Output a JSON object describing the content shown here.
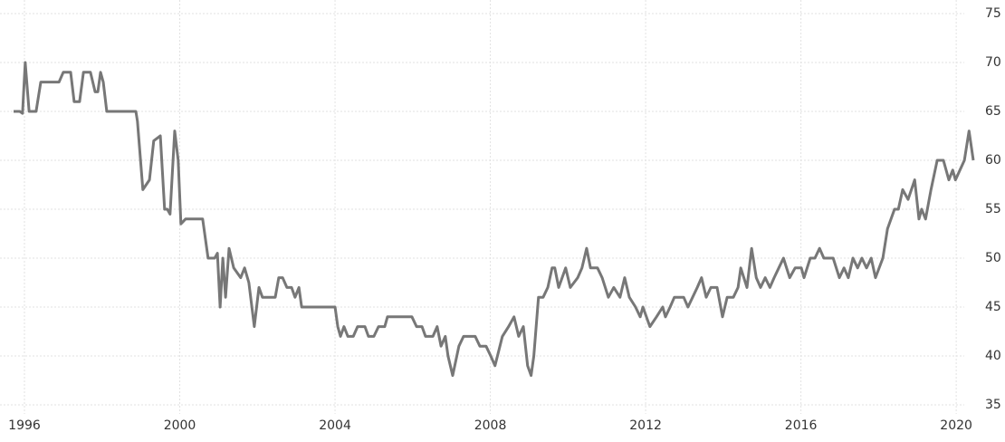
{
  "chart_data": {
    "type": "line",
    "x": [
      1995.72,
      1995.88,
      1995.95,
      1996.02,
      1996.12,
      1996.3,
      1996.42,
      1996.89,
      1997.0,
      1997.19,
      1997.28,
      1997.42,
      1997.52,
      1997.7,
      1997.82,
      1997.89,
      1997.96,
      1998.03,
      1998.12,
      1998.87,
      1998.91,
      1999.05,
      1999.22,
      1999.33,
      1999.5,
      1999.61,
      1999.68,
      1999.75,
      1999.87,
      1999.96,
      2000.03,
      2000.15,
      2000.59,
      2000.73,
      2000.9,
      2000.97,
      2001.04,
      2001.11,
      2001.18,
      2001.27,
      2001.39,
      2001.57,
      2001.67,
      2001.78,
      2001.92,
      2002.04,
      2002.13,
      2002.46,
      2002.55,
      2002.65,
      2002.76,
      2002.88,
      2002.97,
      2003.07,
      2003.14,
      2004.0,
      2004.07,
      2004.14,
      2004.23,
      2004.33,
      2004.47,
      2004.58,
      2004.77,
      2004.86,
      2005.0,
      2005.12,
      2005.28,
      2005.35,
      2005.98,
      2006.1,
      2006.24,
      2006.33,
      2006.52,
      2006.63,
      2006.73,
      2006.84,
      2006.91,
      2007.03,
      2007.19,
      2007.31,
      2007.61,
      2007.73,
      2007.89,
      2008.01,
      2008.12,
      2008.31,
      2008.47,
      2008.61,
      2008.73,
      2008.85,
      2008.96,
      2009.05,
      2009.12,
      2009.24,
      2009.36,
      2009.48,
      2009.59,
      2009.66,
      2009.76,
      2009.94,
      2010.06,
      2010.25,
      2010.36,
      2010.48,
      2010.58,
      2010.76,
      2010.88,
      2011.04,
      2011.18,
      2011.34,
      2011.46,
      2011.58,
      2011.74,
      2011.86,
      2011.93,
      2012.11,
      2012.28,
      2012.44,
      2012.51,
      2012.63,
      2012.74,
      2012.98,
      2013.09,
      2013.21,
      2013.33,
      2013.44,
      2013.56,
      2013.68,
      2013.84,
      2013.98,
      2014.1,
      2014.26,
      2014.38,
      2014.45,
      2014.61,
      2014.73,
      2014.85,
      2014.96,
      2015.08,
      2015.2,
      2015.31,
      2015.43,
      2015.55,
      2015.71,
      2015.85,
      2016.01,
      2016.08,
      2016.24,
      2016.36,
      2016.48,
      2016.59,
      2016.83,
      2016.99,
      2017.11,
      2017.22,
      2017.34,
      2017.46,
      2017.57,
      2017.69,
      2017.81,
      2017.92,
      2018.11,
      2018.23,
      2018.41,
      2018.51,
      2018.62,
      2018.76,
      2018.93,
      2019.04,
      2019.11,
      2019.21,
      2019.35,
      2019.51,
      2019.67,
      2019.81,
      2019.91,
      2019.98,
      2020.21,
      2020.33,
      2020.44
    ],
    "values": [
      65,
      65,
      64.8,
      70,
      65,
      65,
      68,
      68,
      69,
      69,
      66,
      66,
      69,
      69,
      67,
      67,
      69,
      68,
      65,
      65,
      64,
      57,
      58,
      62,
      62.5,
      55,
      55,
      54.5,
      63,
      60,
      53.5,
      54,
      54,
      50,
      50,
      50.5,
      45,
      50,
      46,
      51,
      49,
      48,
      49,
      47.5,
      43,
      47,
      46,
      46,
      48,
      48,
      47,
      47,
      46,
      47,
      45,
      45,
      43,
      42,
      43,
      42,
      42,
      43,
      43,
      42,
      42,
      43,
      43,
      44,
      44,
      43,
      43,
      42,
      42,
      43,
      41,
      42,
      40,
      38,
      41,
      42,
      42,
      41,
      41,
      40,
      39,
      42,
      43,
      44,
      42,
      43,
      39,
      38,
      40,
      46,
      46,
      47,
      49,
      49,
      47,
      49,
      47,
      48,
      49,
      51,
      49,
      49,
      48,
      46,
      47,
      46,
      48,
      46,
      45,
      44,
      45,
      43,
      44,
      45,
      44,
      45,
      46,
      46,
      45,
      46,
      47,
      48,
      46,
      47,
      47,
      44,
      46,
      46,
      47,
      49,
      47,
      51,
      48,
      47,
      48,
      47,
      48,
      49,
      50,
      48,
      49,
      49,
      48,
      50,
      50,
      51,
      50,
      50,
      48,
      49,
      48,
      50,
      49,
      50,
      49,
      50,
      48,
      50,
      53,
      55,
      55,
      57,
      56,
      58,
      54,
      55,
      54,
      57,
      60,
      60,
      58,
      59,
      58,
      60,
      63,
      60
    ],
    "color": "#777777",
    "xlim": [
      1995.72,
      2020.44
    ],
    "ylim": [
      35,
      75
    ],
    "xticks": [
      1996,
      2000,
      2004,
      2008,
      2012,
      2016,
      2020
    ],
    "yticks": [
      35,
      40,
      45,
      50,
      55,
      60,
      65,
      70,
      75
    ],
    "grid": true,
    "y_axis_side": "right"
  }
}
